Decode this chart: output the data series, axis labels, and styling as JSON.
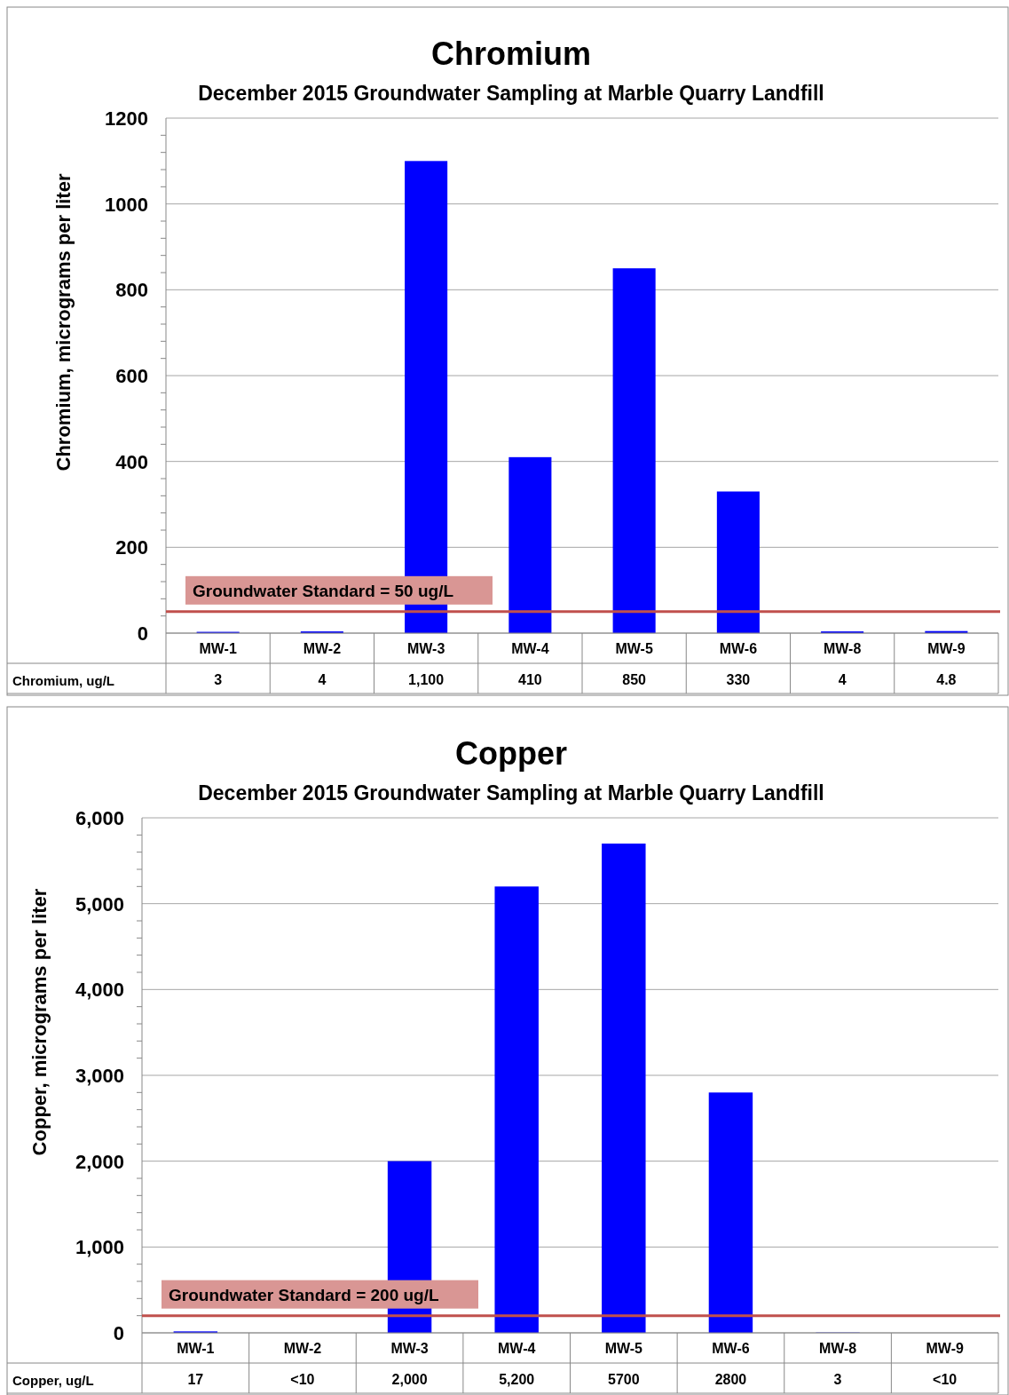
{
  "chart_data": [
    {
      "type": "bar",
      "title": "Chromium",
      "subtitle": "December 2015 Groundwater Sampling at Marble Quarry Landfill",
      "ylabel": "Chromium, micrograms per liter",
      "categories": [
        "MW-1",
        "MW-2",
        "MW-3",
        "MW-4",
        "MW-5",
        "MW-6",
        "MW-8",
        "MW-9"
      ],
      "annotations": [
        "Chromium, ug/L"
      ],
      "series": [
        {
          "color": "#0000ff",
          "values": [
            3,
            4,
            1100,
            410,
            850,
            330,
            4,
            4.8
          ],
          "value_labels": [
            "3",
            "4",
            "1,100",
            "410",
            "850",
            "330",
            "4",
            "4.8"
          ]
        }
      ],
      "ylim": [
        0,
        1200
      ],
      "yticks": [
        0,
        {
          "value": 40,
          "label": null
        },
        {
          "value": 80,
          "label": null
        },
        {
          "value": 120,
          "label": null
        },
        {
          "value": 160,
          "label": null
        },
        200,
        {
          "value": 240,
          "label": null
        },
        {
          "value": 280,
          "label": null
        },
        {
          "value": 320,
          "label": null
        },
        {
          "value": 360,
          "label": null
        },
        400,
        {
          "value": 440,
          "label": null
        },
        {
          "value": 480,
          "label": null
        },
        {
          "value": 520,
          "label": null
        },
        {
          "value": 560,
          "label": null
        },
        600,
        {
          "value": 640,
          "label": null
        },
        {
          "value": 680,
          "label": null
        },
        {
          "value": 720,
          "label": null
        },
        {
          "value": 760,
          "label": null
        },
        800,
        {
          "value": 840,
          "label": null
        },
        {
          "value": 880,
          "label": null
        },
        {
          "value": 920,
          "label": null
        },
        {
          "value": 960,
          "label": null
        },
        1000,
        {
          "value": 1040,
          "label": null
        },
        {
          "value": 1080,
          "label": null
        },
        {
          "value": 1120,
          "label": null
        },
        {
          "value": 1160,
          "label": null
        },
        1200
      ],
      "grid": "y",
      "ref_lines": [
        {
          "axis": "y",
          "value": 50,
          "label": "Groundwater Standard = 50 ug/L",
          "color": "#c0504d"
        }
      ]
    },
    {
      "type": "bar",
      "title": "Copper",
      "subtitle": "December 2015 Groundwater Sampling at Marble Quarry Landfill",
      "ylabel": "Copper, micrograms per liter",
      "categories": [
        "MW-1",
        "MW-2",
        "MW-3",
        "MW-4",
        "MW-5",
        "MW-6",
        "MW-8",
        "MW-9"
      ],
      "annotations": [
        "Copper, ug/L"
      ],
      "series": [
        {
          "color": "#0000ff",
          "values": [
            17,
            null,
            2000,
            5200,
            5700,
            2800,
            3,
            null
          ],
          "value_labels": [
            "17",
            "<10",
            "2,000",
            "5,200",
            "5700",
            "2800",
            "3",
            "<10"
          ]
        }
      ],
      "ylim": [
        0,
        6000
      ],
      "yticks": [
        0,
        {
          "value": 200,
          "label": null
        },
        {
          "value": 400,
          "label": null
        },
        {
          "value": 600,
          "label": null
        },
        {
          "value": 800,
          "label": null
        },
        {
          "value": 1000,
          "label": "1,000"
        },
        {
          "value": 1200,
          "label": null
        },
        {
          "value": 1400,
          "label": null
        },
        {
          "value": 1600,
          "label": null
        },
        {
          "value": 1800,
          "label": null
        },
        {
          "value": 2000,
          "label": "2,000"
        },
        {
          "value": 2200,
          "label": null
        },
        {
          "value": 2400,
          "label": null
        },
        {
          "value": 2600,
          "label": null
        },
        {
          "value": 2800,
          "label": null
        },
        {
          "value": 3000,
          "label": "3,000"
        },
        {
          "value": 3200,
          "label": null
        },
        {
          "value": 3400,
          "label": null
        },
        {
          "value": 3600,
          "label": null
        },
        {
          "value": 3800,
          "label": null
        },
        {
          "value": 4000,
          "label": "4,000"
        },
        {
          "value": 4200,
          "label": null
        },
        {
          "value": 4400,
          "label": null
        },
        {
          "value": 4600,
          "label": null
        },
        {
          "value": 4800,
          "label": null
        },
        {
          "value": 5000,
          "label": "5,000"
        },
        {
          "value": 5200,
          "label": null
        },
        {
          "value": 5400,
          "label": null
        },
        {
          "value": 5600,
          "label": null
        },
        {
          "value": 5800,
          "label": null
        },
        {
          "value": 6000,
          "label": "6,000"
        }
      ],
      "grid": "y",
      "ref_lines": [
        {
          "axis": "y",
          "value": 200,
          "label": "Groundwater Standard = 200 ug/L",
          "color": "#c0504d"
        }
      ]
    }
  ]
}
